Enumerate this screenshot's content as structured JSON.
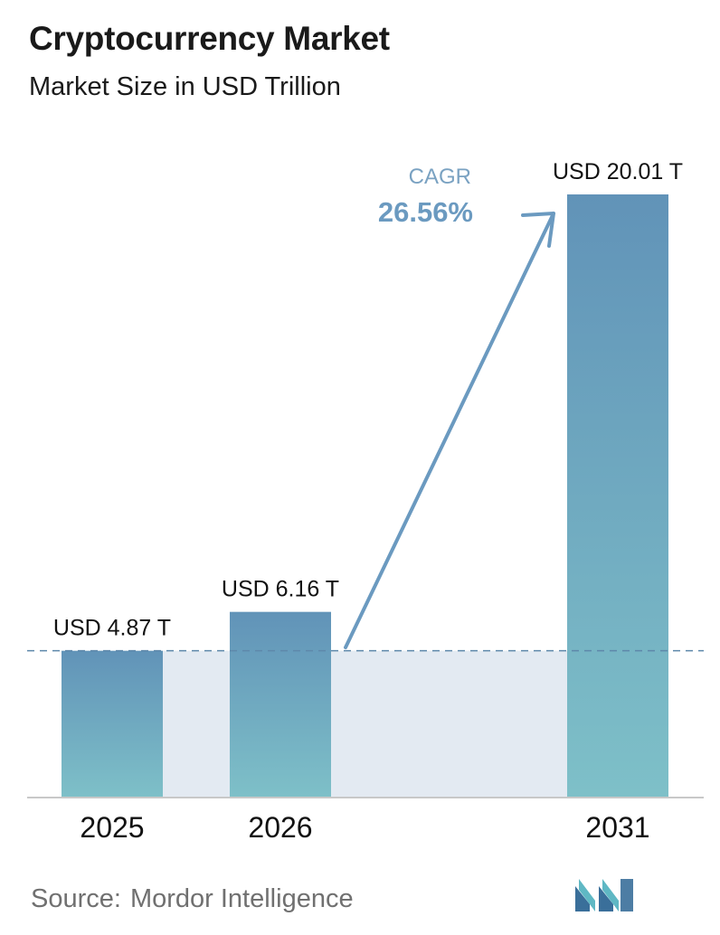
{
  "header": {
    "title": "Cryptocurrency Market",
    "subtitle": "Market Size in USD Trillion"
  },
  "chart_data": {
    "type": "bar",
    "categories": [
      "2025",
      "2026",
      "2031"
    ],
    "values": [
      4.87,
      6.16,
      20.01
    ],
    "data_labels": [
      "USD 4.87 T",
      "USD 6.16 T",
      "USD 20.01 T"
    ],
    "title": "Cryptocurrency Market",
    "subtitle": "Market Size in USD Trillion",
    "xlabel": "",
    "ylabel": "",
    "ylim": [
      0,
      20.01
    ],
    "grid": false,
    "reference_line_value": 4.87,
    "annotation": {
      "label": "CAGR",
      "value": "26.56%"
    },
    "colors": {
      "bar_top": "#6193b8",
      "bar_bottom": "#7ec0c8",
      "band": "#e3eaf2",
      "arrow": "#6b9ac0",
      "cagr_label": "#7aa2c2",
      "cagr_value": "#6b9ac0",
      "dashed_line": "#5e88aa",
      "axis": "#c8c8c8"
    }
  },
  "footer": {
    "source_label": "Source:",
    "source_name": "Mordor Intelligence",
    "logo": "mordor-intelligence-logo"
  }
}
